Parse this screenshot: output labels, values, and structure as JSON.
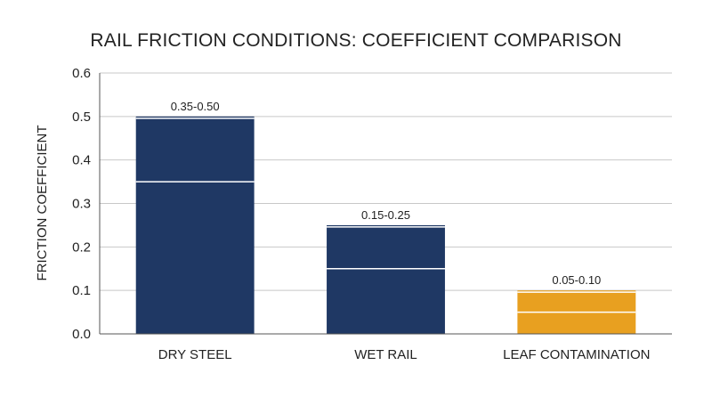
{
  "chart_data": {
    "type": "bar",
    "title": "RAIL FRICTION CONDITIONS: COEFFICIENT COMPARISON",
    "xlabel": "",
    "ylabel": "FRICTION COEFFICIENT",
    "ylim": [
      0,
      0.6
    ],
    "yticks": [
      "0.0",
      "0.1",
      "0.2",
      "0.3",
      "0.4",
      "0.5",
      "0.6"
    ],
    "grid": true,
    "categories": [
      "DRY STEEL",
      "WET RAIL",
      "LEAF CONTAMINATION"
    ],
    "ranges": [
      {
        "low": 0.35,
        "high": 0.5,
        "label": "0.35-0.50"
      },
      {
        "low": 0.15,
        "high": 0.25,
        "label": "0.15-0.25"
      },
      {
        "low": 0.05,
        "high": 0.1,
        "label": "0.05-0.10"
      }
    ],
    "colors": [
      "#1f3864",
      "#1f3864",
      "#e8a020"
    ],
    "grid_color": "#c8c8c8",
    "axis_color": "#555555"
  }
}
